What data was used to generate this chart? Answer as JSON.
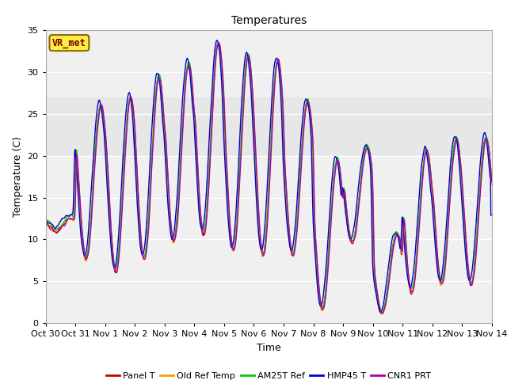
{
  "title": "Temperatures",
  "xlabel": "Time",
  "ylabel": "Temperature (C)",
  "ylim": [
    0,
    35
  ],
  "xlim": [
    0,
    15
  ],
  "plot_bg_color": "#ffffff",
  "grid_color": "#dddddd",
  "annotation_label": "VR_met",
  "annotation_box_color": "#ffee44",
  "annotation_box_edge": "#886600",
  "x_ticks": [
    0,
    1,
    2,
    3,
    4,
    5,
    6,
    7,
    8,
    9,
    10,
    11,
    12,
    13,
    14,
    15
  ],
  "x_tick_labels": [
    "Oct 30",
    "Oct 31",
    "Nov 1",
    "Nov 2",
    "Nov 3",
    "Nov 4",
    "Nov 5",
    "Nov 6",
    "Nov 7",
    "Nov 8",
    "Nov 9",
    "Nov 10",
    "Nov 11",
    "Nov 12",
    "Nov 13",
    "Nov 14"
  ],
  "series_colors": [
    "#cc0000",
    "#ff9900",
    "#00cc00",
    "#0000cc",
    "#aa00aa"
  ],
  "series_names": [
    "Panel T",
    "Old Ref Temp",
    "AM25T Ref",
    "HMP45 T",
    "CNR1 PRT"
  ],
  "line_width": 1.0,
  "day_peaks": [
    12.5,
    26.0,
    27.0,
    29.5,
    31.0,
    33.5,
    32.0,
    31.5,
    26.5,
    19.5,
    21.0,
    10.5,
    20.5,
    22.0,
    22.0
  ],
  "day_valleys": [
    11.0,
    7.5,
    6.0,
    7.5,
    9.5,
    10.5,
    8.5,
    8.0,
    8.0,
    1.5,
    9.5,
    1.0,
    3.5,
    4.5,
    4.5
  ],
  "peak_phase": [
    0.6,
    0.6,
    0.6,
    0.55,
    0.55,
    0.55,
    0.55,
    0.55,
    0.55,
    0.55,
    0.55,
    0.55,
    0.55,
    0.55,
    0.55
  ]
}
